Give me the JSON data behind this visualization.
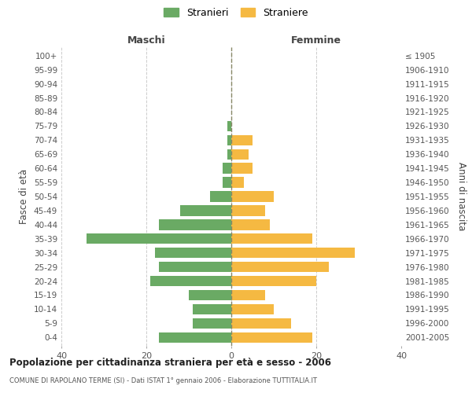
{
  "age_groups": [
    "100+",
    "95-99",
    "90-94",
    "85-89",
    "80-84",
    "75-79",
    "70-74",
    "65-69",
    "60-64",
    "55-59",
    "50-54",
    "45-49",
    "40-44",
    "35-39",
    "30-34",
    "25-29",
    "20-24",
    "15-19",
    "10-14",
    "5-9",
    "0-4"
  ],
  "birth_years": [
    "≤ 1905",
    "1906-1910",
    "1911-1915",
    "1916-1920",
    "1921-1925",
    "1926-1930",
    "1931-1935",
    "1936-1940",
    "1941-1945",
    "1946-1950",
    "1951-1955",
    "1956-1960",
    "1961-1965",
    "1966-1970",
    "1971-1975",
    "1976-1980",
    "1981-1985",
    "1986-1990",
    "1991-1995",
    "1996-2000",
    "2001-2005"
  ],
  "maschi": [
    0,
    0,
    0,
    0,
    0,
    1,
    1,
    1,
    2,
    2,
    5,
    12,
    17,
    34,
    18,
    17,
    19,
    10,
    9,
    9,
    17
  ],
  "femmine": [
    0,
    0,
    0,
    0,
    0,
    0,
    5,
    4,
    5,
    3,
    10,
    8,
    9,
    19,
    29,
    23,
    20,
    8,
    10,
    14,
    19
  ],
  "maschi_color": "#6aaa64",
  "femmine_color": "#f5b942",
  "background_color": "#ffffff",
  "grid_color": "#cccccc",
  "title": "Popolazione per cittadinanza straniera per età e sesso - 2006",
  "subtitle": "COMUNE DI RAPOLANO TERME (SI) - Dati ISTAT 1° gennaio 2006 - Elaborazione TUTTITALIA.IT",
  "xlabel_left": "Maschi",
  "xlabel_right": "Femmine",
  "ylabel_left": "Fasce di età",
  "ylabel_right": "Anni di nascita",
  "legend_stranieri": "Stranieri",
  "legend_straniere": "Straniere",
  "xlim": 40,
  "bar_height": 0.75
}
